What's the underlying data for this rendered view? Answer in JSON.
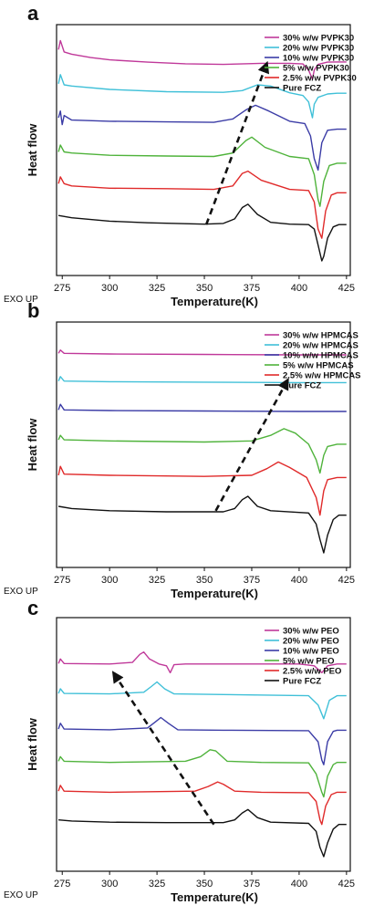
{
  "chart_data": [
    {
      "type": "line",
      "panel": "a",
      "xlabel": "Temperature(K)",
      "ylabel": "Heat flow",
      "corner_note": "EXO UP",
      "xlim": [
        272,
        427
      ],
      "xticks": [
        275,
        300,
        325,
        350,
        375,
        400,
        425
      ],
      "legend": "top-right",
      "series": [
        {
          "name": "30% w/w PVPK30",
          "color": "#c0399a",
          "x": [
            273,
            274,
            276,
            280,
            290,
            300,
            320,
            340,
            360,
            380,
            395,
            402,
            405,
            407,
            408,
            410,
            415,
            420,
            425
          ],
          "y": [
            0.93,
            0.97,
            0.92,
            0.91,
            0.895,
            0.885,
            0.875,
            0.868,
            0.865,
            0.87,
            0.87,
            0.867,
            0.84,
            0.8,
            0.84,
            0.865,
            0.875,
            0.876,
            0.876
          ]
        },
        {
          "name": "20% w/w PVPK30",
          "color": "#40c0d8",
          "x": [
            273,
            274,
            276,
            280,
            300,
            330,
            360,
            370,
            378,
            385,
            395,
            402,
            405,
            407,
            408,
            410,
            415,
            420,
            425
          ],
          "y": [
            0.78,
            0.82,
            0.775,
            0.77,
            0.755,
            0.745,
            0.742,
            0.75,
            0.775,
            0.77,
            0.74,
            0.728,
            0.7,
            0.63,
            0.69,
            0.72,
            0.735,
            0.738,
            0.738
          ]
        },
        {
          "name": "10% w/w PVPK30",
          "color": "#3b3ca6",
          "x": [
            273,
            274,
            275,
            276,
            280,
            300,
            330,
            355,
            365,
            372,
            377,
            384,
            395,
            403,
            406,
            408,
            410,
            412,
            415,
            420,
            425
          ],
          "y": [
            0.63,
            0.66,
            0.6,
            0.64,
            0.62,
            0.615,
            0.612,
            0.61,
            0.625,
            0.665,
            0.685,
            0.66,
            0.615,
            0.605,
            0.55,
            0.45,
            0.4,
            0.52,
            0.575,
            0.58,
            0.58
          ]
        },
        {
          "name": "5% w/w PVPK30",
          "color": "#4fb33b",
          "x": [
            273,
            274,
            276,
            280,
            300,
            330,
            355,
            365,
            372,
            375,
            382,
            395,
            405,
            408,
            410,
            411,
            413,
            416,
            420,
            425
          ],
          "y": [
            0.48,
            0.51,
            0.48,
            0.475,
            0.465,
            0.462,
            0.46,
            0.475,
            0.53,
            0.545,
            0.5,
            0.46,
            0.45,
            0.38,
            0.27,
            0.24,
            0.35,
            0.42,
            0.43,
            0.43
          ]
        },
        {
          "name": "2.5% w/w PVPK30",
          "color": "#e02a2a",
          "x": [
            273,
            274,
            276,
            280,
            300,
            330,
            355,
            365,
            370,
            373,
            380,
            395,
            405,
            408,
            410,
            412,
            414,
            417,
            420,
            425
          ],
          "y": [
            0.34,
            0.37,
            0.34,
            0.33,
            0.32,
            0.318,
            0.315,
            0.33,
            0.385,
            0.395,
            0.355,
            0.315,
            0.31,
            0.26,
            0.14,
            0.1,
            0.22,
            0.29,
            0.3,
            0.3
          ]
        },
        {
          "name": "Pure FCZ",
          "color": "#111111",
          "x": [
            273,
            280,
            300,
            320,
            350,
            360,
            366,
            370,
            373,
            378,
            385,
            395,
            405,
            408,
            410,
            412,
            413,
            415,
            418,
            421,
            425
          ],
          "y": [
            0.2,
            0.19,
            0.175,
            0.168,
            0.162,
            0.165,
            0.185,
            0.235,
            0.25,
            0.205,
            0.17,
            0.162,
            0.16,
            0.14,
            0.07,
            0.0,
            0.02,
            0.1,
            0.15,
            0.16,
            0.16
          ]
        }
      ],
      "arrow": {
        "from": [
          351,
          0.16
        ],
        "to": [
          383,
          0.87
        ]
      }
    },
    {
      "type": "line",
      "panel": "b",
      "xlabel": "Temperature(K)",
      "ylabel": "Heat flow",
      "corner_note": "EXO UP",
      "xlim": [
        272,
        427
      ],
      "xticks": [
        275,
        300,
        325,
        350,
        375,
        400,
        425
      ],
      "legend": "top-right",
      "series": [
        {
          "name": "30% w/w HPMCAS",
          "color": "#c0399a",
          "x": [
            273,
            274,
            276,
            300,
            350,
            400,
            425
          ],
          "y": [
            0.9,
            0.915,
            0.9,
            0.897,
            0.895,
            0.893,
            0.893
          ]
        },
        {
          "name": "20% w/w HPMCAS",
          "color": "#40c0d8",
          "x": [
            273,
            274,
            276,
            300,
            350,
            400,
            425
          ],
          "y": [
            0.775,
            0.795,
            0.775,
            0.772,
            0.77,
            0.768,
            0.768
          ]
        },
        {
          "name": "10% w/w HPMCAS",
          "color": "#3b3ca6",
          "x": [
            273,
            274,
            276,
            300,
            350,
            400,
            425
          ],
          "y": [
            0.645,
            0.67,
            0.645,
            0.642,
            0.64,
            0.638,
            0.638
          ]
        },
        {
          "name": "5% w/w HPMCAS",
          "color": "#4fb33b",
          "x": [
            273,
            274,
            276,
            300,
            350,
            375,
            385,
            392,
            398,
            405,
            409,
            411,
            413,
            415,
            420,
            425
          ],
          "y": [
            0.51,
            0.53,
            0.51,
            0.505,
            0.5,
            0.505,
            0.53,
            0.56,
            0.54,
            0.49,
            0.42,
            0.36,
            0.44,
            0.48,
            0.49,
            0.49
          ]
        },
        {
          "name": "2.5% w/w HPMCAS",
          "color": "#e02a2a",
          "x": [
            273,
            274,
            276,
            300,
            350,
            375,
            383,
            389,
            395,
            404,
            409,
            411,
            413,
            415,
            420,
            425
          ],
          "y": [
            0.35,
            0.39,
            0.355,
            0.35,
            0.345,
            0.35,
            0.38,
            0.41,
            0.385,
            0.34,
            0.25,
            0.17,
            0.28,
            0.33,
            0.34,
            0.34
          ]
        },
        {
          "name": "Pure FCZ",
          "color": "#111111",
          "x": [
            273,
            280,
            300,
            330,
            360,
            366,
            370,
            373,
            378,
            385,
            405,
            409,
            411,
            413,
            415,
            418,
            421,
            425
          ],
          "y": [
            0.21,
            0.2,
            0.19,
            0.185,
            0.185,
            0.2,
            0.24,
            0.255,
            0.21,
            0.19,
            0.18,
            0.13,
            0.06,
            0.0,
            0.08,
            0.15,
            0.17,
            0.17
          ]
        }
      ],
      "arrow": {
        "from": [
          356,
          0.19
        ],
        "to": [
          394,
          0.78
        ]
      }
    },
    {
      "type": "line",
      "panel": "c",
      "xlabel": "Temperature(K)",
      "ylabel": "Heat flow",
      "corner_note": "EXO UP",
      "xlim": [
        272,
        427
      ],
      "xticks": [
        275,
        300,
        325,
        350,
        375,
        400,
        425
      ],
      "legend": "top-right",
      "series": [
        {
          "name": "30% w/w PEO",
          "color": "#c0399a",
          "x": [
            273,
            274,
            276,
            300,
            312,
            316,
            318,
            321,
            326,
            330,
            332,
            334,
            340,
            400,
            408,
            412,
            415,
            420,
            425
          ],
          "y": [
            0.84,
            0.86,
            0.84,
            0.838,
            0.845,
            0.88,
            0.89,
            0.86,
            0.838,
            0.83,
            0.8,
            0.835,
            0.838,
            0.838,
            0.83,
            0.8,
            0.83,
            0.838,
            0.838
          ]
        },
        {
          "name": "20% w/w PEO",
          "color": "#40c0d8",
          "x": [
            273,
            274,
            276,
            300,
            318,
            322,
            325,
            329,
            334,
            360,
            405,
            410,
            413,
            416,
            420,
            425
          ],
          "y": [
            0.71,
            0.73,
            0.71,
            0.708,
            0.715,
            0.74,
            0.76,
            0.73,
            0.708,
            0.705,
            0.7,
            0.66,
            0.6,
            0.68,
            0.7,
            0.7
          ]
        },
        {
          "name": "10% w/w PEO",
          "color": "#3b3ca6",
          "x": [
            273,
            274,
            276,
            300,
            320,
            324,
            327,
            331,
            336,
            360,
            405,
            410,
            412,
            413,
            415,
            418,
            420,
            425
          ],
          "y": [
            0.555,
            0.58,
            0.555,
            0.552,
            0.56,
            0.585,
            0.605,
            0.58,
            0.552,
            0.55,
            0.548,
            0.5,
            0.42,
            0.4,
            0.5,
            0.545,
            0.55,
            0.55
          ]
        },
        {
          "name": "5% w/w PEO",
          "color": "#4fb33b",
          "x": [
            273,
            274,
            276,
            300,
            340,
            348,
            353,
            356,
            362,
            380,
            405,
            409,
            412,
            413,
            415,
            418,
            420,
            425
          ],
          "y": [
            0.415,
            0.435,
            0.415,
            0.41,
            0.415,
            0.435,
            0.465,
            0.46,
            0.415,
            0.41,
            0.408,
            0.36,
            0.28,
            0.26,
            0.35,
            0.4,
            0.41,
            0.41
          ]
        },
        {
          "name": "2.5% w/w PEO",
          "color": "#e02a2a",
          "x": [
            273,
            274,
            276,
            300,
            345,
            352,
            357,
            360,
            366,
            380,
            405,
            409,
            411,
            412,
            414,
            417,
            420,
            425
          ],
          "y": [
            0.285,
            0.31,
            0.285,
            0.28,
            0.285,
            0.305,
            0.325,
            0.315,
            0.285,
            0.28,
            0.278,
            0.24,
            0.16,
            0.14,
            0.22,
            0.27,
            0.28,
            0.28
          ]
        },
        {
          "name": "Pure FCZ",
          "color": "#111111",
          "x": [
            273,
            280,
            300,
            330,
            360,
            366,
            370,
            373,
            378,
            385,
            405,
            409,
            411,
            413,
            415,
            418,
            421,
            425
          ],
          "y": [
            0.16,
            0.155,
            0.15,
            0.148,
            0.148,
            0.16,
            0.19,
            0.205,
            0.17,
            0.15,
            0.145,
            0.11,
            0.04,
            0.0,
            0.06,
            0.12,
            0.14,
            0.14
          ]
        }
      ],
      "arrow": {
        "from": [
          355,
          0.14
        ],
        "to": [
          302,
          0.8
        ]
      }
    }
  ]
}
